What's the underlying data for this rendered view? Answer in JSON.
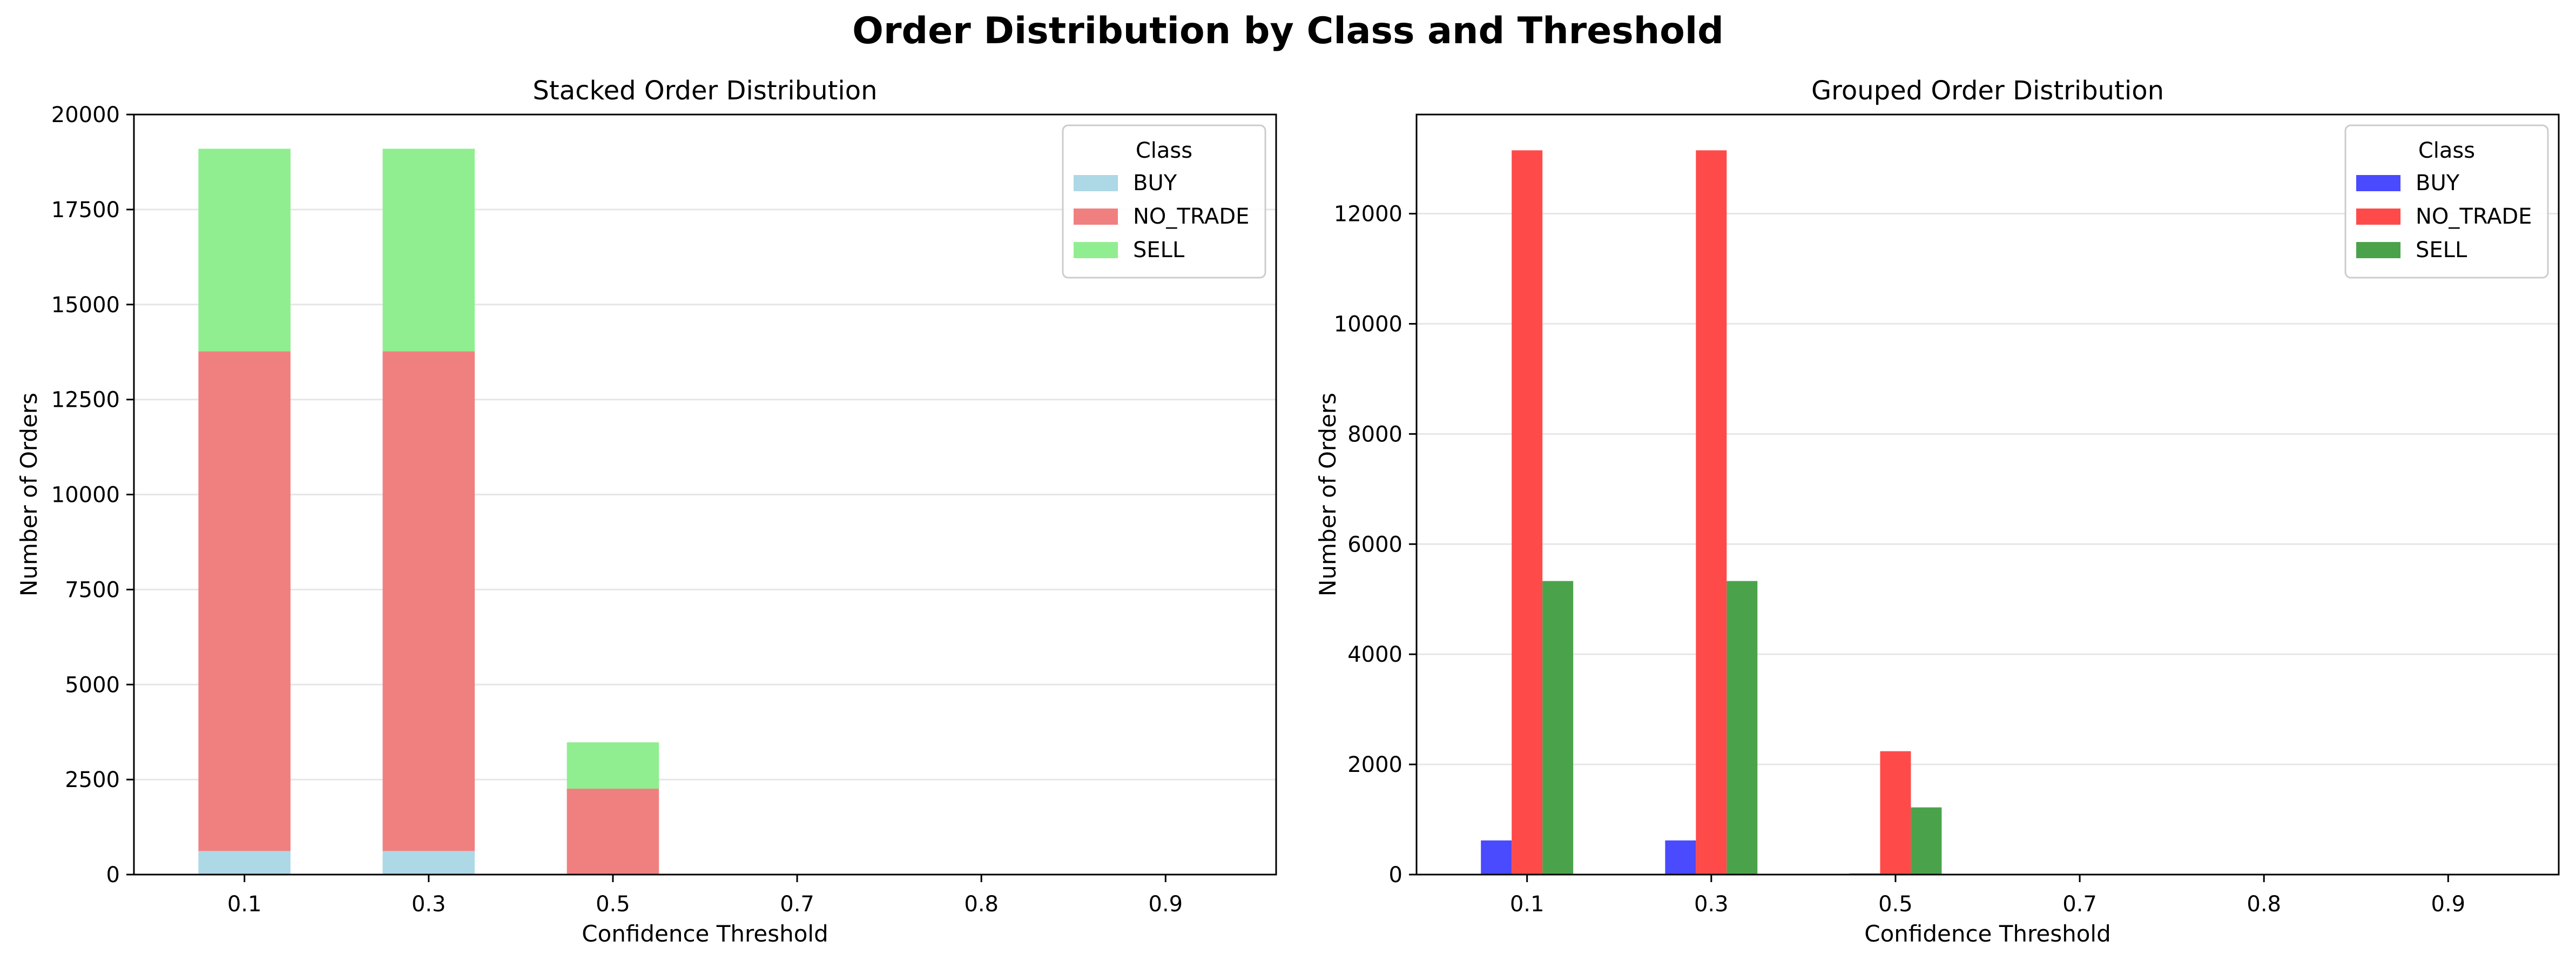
{
  "figure": {
    "title": "Order Distribution by Class and Threshold"
  },
  "chart_data": [
    {
      "type": "bar",
      "mode": "stacked",
      "title": "Stacked Order Distribution",
      "xlabel": "Confidence Threshold",
      "ylabel": "Number of Orders",
      "categories": [
        "0.1",
        "0.3",
        "0.5",
        "0.7",
        "0.8",
        "0.9"
      ],
      "ylim": [
        0,
        20000
      ],
      "yticks": [
        0,
        2500,
        5000,
        7500,
        10000,
        12500,
        15000,
        17500,
        20000
      ],
      "grid": "y",
      "legend": {
        "title": "Class",
        "position": "top-right"
      },
      "series": [
        {
          "name": "BUY",
          "color": "#add8e6",
          "values": [
            620,
            620,
            20,
            0,
            0,
            0
          ]
        },
        {
          "name": "NO_TRADE",
          "color": "#f08080",
          "values": [
            13150,
            13150,
            2240,
            0,
            0,
            0
          ]
        },
        {
          "name": "SELL",
          "color": "#90ee90",
          "values": [
            5330,
            5330,
            1220,
            0,
            0,
            0
          ]
        }
      ]
    },
    {
      "type": "bar",
      "mode": "grouped",
      "title": "Grouped Order Distribution",
      "xlabel": "Confidence Threshold",
      "ylabel": "Number of Orders",
      "categories": [
        "0.1",
        "0.3",
        "0.5",
        "0.7",
        "0.8",
        "0.9"
      ],
      "ylim": [
        0,
        13800
      ],
      "yticks": [
        0,
        2000,
        4000,
        6000,
        8000,
        10000,
        12000
      ],
      "grid": "y",
      "legend": {
        "title": "Class",
        "position": "top-right"
      },
      "series": [
        {
          "name": "BUY",
          "color": "#4a4aff",
          "values": [
            620,
            620,
            20,
            0,
            0,
            0
          ]
        },
        {
          "name": "NO_TRADE",
          "color": "#ff4a4a",
          "values": [
            13150,
            13150,
            2240,
            0,
            0,
            0
          ]
        },
        {
          "name": "SELL",
          "color": "#4aa34a",
          "values": [
            5330,
            5330,
            1220,
            0,
            0,
            0
          ]
        }
      ]
    }
  ]
}
